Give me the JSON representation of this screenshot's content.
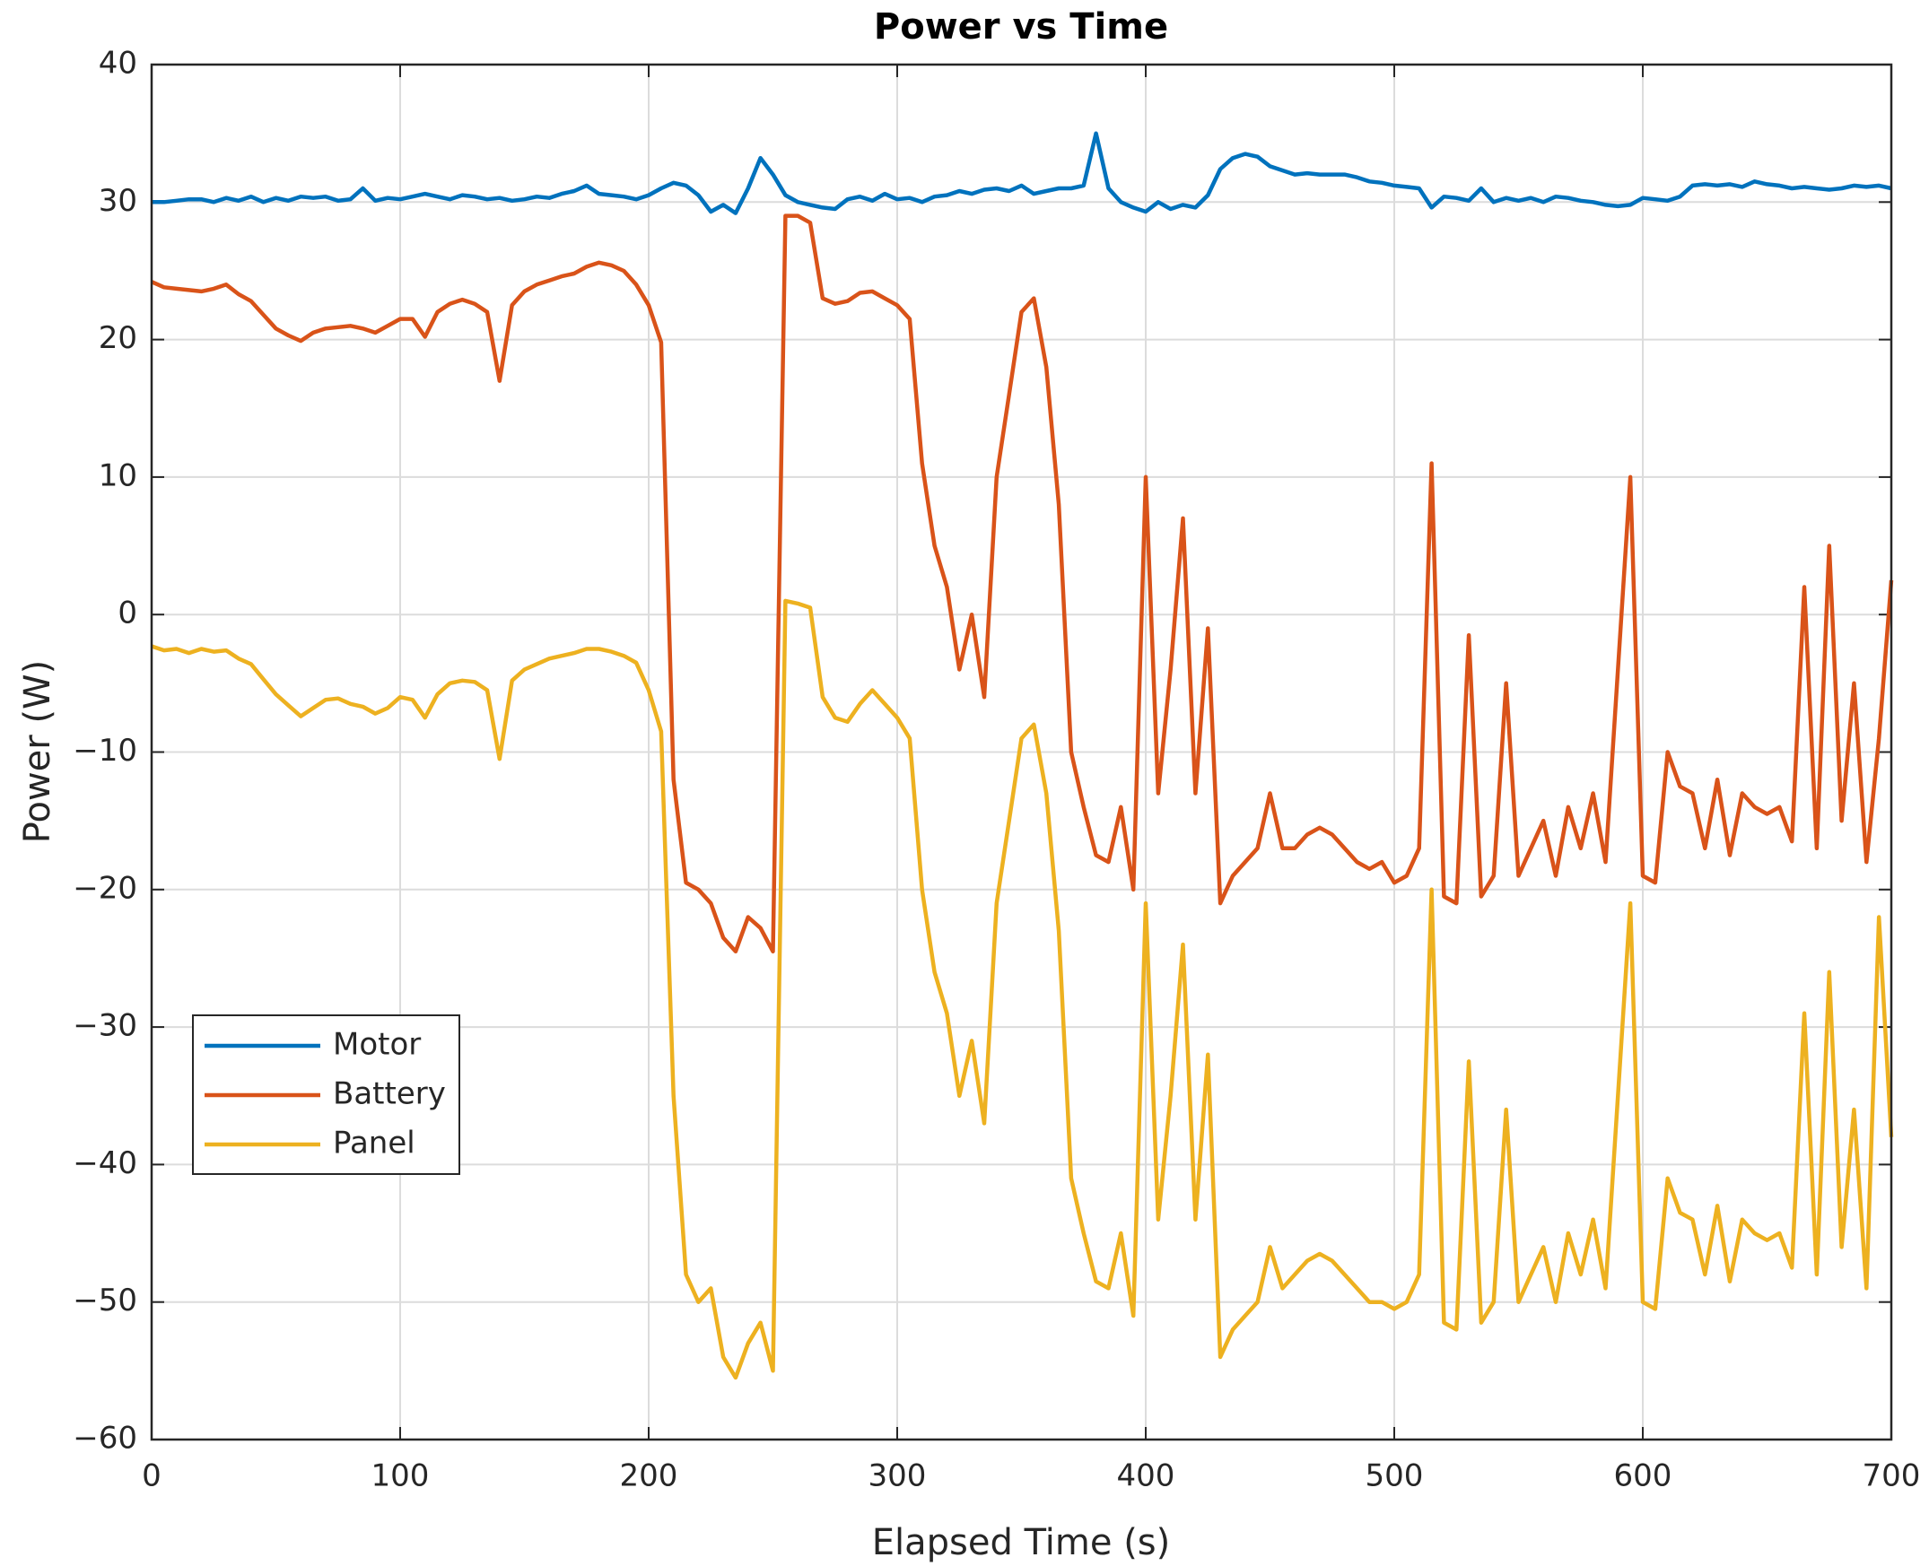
{
  "chart_data": {
    "type": "line",
    "title": "Power vs Time",
    "xlabel": "Elapsed Time (s)",
    "ylabel": "Power (W)",
    "x": [
      0,
      5,
      10,
      15,
      20,
      25,
      30,
      35,
      40,
      45,
      50,
      55,
      60,
      65,
      70,
      75,
      80,
      85,
      90,
      95,
      100,
      105,
      110,
      115,
      120,
      125,
      130,
      135,
      140,
      145,
      150,
      155,
      160,
      165,
      170,
      175,
      180,
      185,
      190,
      195,
      200,
      205,
      210,
      215,
      220,
      225,
      230,
      235,
      240,
      245,
      250,
      255,
      260,
      265,
      270,
      275,
      280,
      285,
      290,
      295,
      300,
      305,
      310,
      315,
      320,
      325,
      330,
      335,
      340,
      345,
      350,
      355,
      360,
      365,
      370,
      375,
      380,
      385,
      390,
      395,
      400,
      405,
      410,
      415,
      420,
      425,
      430,
      435,
      440,
      445,
      450,
      455,
      460,
      465,
      470,
      475,
      480,
      485,
      490,
      495,
      500,
      505,
      510,
      515,
      520,
      525,
      530,
      535,
      540,
      545,
      550,
      555,
      560,
      565,
      570,
      575,
      580,
      585,
      590,
      595,
      600,
      605,
      610,
      615,
      620,
      625,
      630,
      635,
      640,
      645,
      650,
      655,
      660,
      665,
      670,
      675,
      680,
      685,
      690,
      695,
      700
    ],
    "series": [
      {
        "name": "Motor",
        "color": "#0072bd",
        "values": [
          30,
          30,
          30.1,
          30.2,
          30.2,
          30,
          30.3,
          30.1,
          30.4,
          30,
          30.3,
          30.1,
          30.4,
          30.3,
          30.4,
          30.1,
          30.2,
          31,
          30.1,
          30.3,
          30.2,
          30.4,
          30.6,
          30.4,
          30.2,
          30.5,
          30.4,
          30.2,
          30.3,
          30.1,
          30.2,
          30.4,
          30.3,
          30.6,
          30.8,
          31.2,
          30.6,
          30.5,
          30.4,
          30.2,
          30.5,
          31,
          31.4,
          31.2,
          30.5,
          29.3,
          29.8,
          29.2,
          31,
          33.2,
          32,
          30.5,
          30,
          29.8,
          29.6,
          29.5,
          30.2,
          30.4,
          30.1,
          30.6,
          30.2,
          30.3,
          30,
          30.4,
          30.5,
          30.8,
          30.6,
          30.9,
          31,
          30.8,
          31.2,
          30.6,
          30.8,
          31,
          31,
          31.2,
          35,
          31,
          30,
          29.6,
          29.3,
          30,
          29.5,
          29.8,
          29.6,
          30.5,
          32.4,
          33.2,
          33.5,
          33.3,
          32.6,
          32.3,
          32,
          32.1,
          32,
          32,
          32,
          31.8,
          31.5,
          31.4,
          31.2,
          31.1,
          31,
          29.6,
          30.4,
          30.3,
          30.1,
          31,
          30,
          30.3,
          30.1,
          30.3,
          30,
          30.4,
          30.3,
          30.1,
          30,
          29.8,
          29.7,
          29.8,
          30.3,
          30.2,
          30.1,
          30.4,
          31.2,
          31.3,
          31.2,
          31.3,
          31.1,
          31.5,
          31.3,
          31.2,
          31,
          31.1,
          31,
          30.9,
          31,
          31.2,
          31.1,
          31.2,
          31
        ]
      },
      {
        "name": "Battery",
        "color": "#d95319",
        "values": [
          24.2,
          23.8,
          23.7,
          23.6,
          23.5,
          23.7,
          24,
          23.3,
          22.8,
          21.8,
          20.8,
          20.3,
          19.9,
          20.5,
          20.8,
          20.9,
          21,
          20.8,
          20.5,
          21,
          21.5,
          21.5,
          20.2,
          22,
          22.6,
          22.9,
          22.6,
          22,
          17,
          22.5,
          23.5,
          24,
          24.3,
          24.6,
          24.8,
          25.3,
          25.6,
          25.4,
          25,
          24,
          22.5,
          19.8,
          -12,
          -19.5,
          -20,
          -21,
          -23.5,
          -24.5,
          -22,
          -22.8,
          -24.5,
          29,
          29,
          28.5,
          23,
          22.6,
          22.8,
          23.4,
          23.5,
          23,
          22.5,
          21.5,
          11,
          5,
          2,
          -4,
          0,
          -6,
          10,
          16,
          22,
          23,
          18,
          8,
          -10,
          -14,
          -17.5,
          -18,
          -14,
          -20,
          10,
          -13,
          -4,
          7,
          -13,
          -1,
          -21,
          -19,
          -18,
          -17,
          -13,
          -17,
          -17,
          -16,
          -15.5,
          -16,
          -17,
          -18,
          -18.5,
          -18,
          -19.5,
          -19,
          -17,
          11,
          -20.5,
          -21,
          -1.5,
          -20.5,
          -19,
          -5,
          -19,
          -17,
          -15,
          -19,
          -14,
          -17,
          -13,
          -18,
          -4,
          10,
          -19,
          -19.5,
          -10,
          -12.5,
          -13,
          -17,
          -12,
          -17.5,
          -13,
          -14,
          -14.5,
          -14,
          -16.5,
          2,
          -17,
          5,
          -15,
          -5,
          -18,
          -9,
          2.5
        ]
      },
      {
        "name": "Panel",
        "color": "#edb120",
        "values": [
          -2.3,
          -2.6,
          -2.5,
          -2.8,
          -2.5,
          -2.7,
          -2.6,
          -3.2,
          -3.6,
          -4.7,
          -5.8,
          -6.6,
          -7.4,
          -6.8,
          -6.2,
          -6.1,
          -6.5,
          -6.7,
          -7.2,
          -6.8,
          -6,
          -6.2,
          -7.5,
          -5.8,
          -5,
          -4.8,
          -4.9,
          -5.5,
          -10.5,
          -4.8,
          -4,
          -3.6,
          -3.2,
          -3,
          -2.8,
          -2.5,
          -2.5,
          -2.7,
          -3,
          -3.5,
          -5.5,
          -8.5,
          -35,
          -48,
          -50,
          -49,
          -54,
          -55.5,
          -53,
          -51.5,
          -55,
          1,
          0.8,
          0.5,
          -6,
          -7.5,
          -7.8,
          -6.5,
          -5.5,
          -6.5,
          -7.5,
          -9,
          -20,
          -26,
          -29,
          -35,
          -31,
          -37,
          -21,
          -15,
          -9,
          -8,
          -13,
          -23,
          -41,
          -45,
          -48.5,
          -49,
          -45,
          -51,
          -21,
          -44,
          -35,
          -24,
          -44,
          -32,
          -54,
          -52,
          -51,
          -50,
          -46,
          -49,
          -48,
          -47,
          -46.5,
          -47,
          -48,
          -49,
          -50,
          -50,
          -50.5,
          -50,
          -48,
          -20,
          -51.5,
          -52,
          -32.5,
          -51.5,
          -50,
          -36,
          -50,
          -48,
          -46,
          -50,
          -45,
          -48,
          -44,
          -49,
          -35,
          -21,
          -50,
          -50.5,
          -41,
          -43.5,
          -44,
          -48,
          -43,
          -48.5,
          -44,
          -45,
          -45.5,
          -45,
          -47.5,
          -29,
          -48,
          -26,
          -46,
          -36,
          -49,
          -22,
          -38
        ]
      }
    ],
    "xlim": [
      0,
      700
    ],
    "xticks": [
      0,
      100,
      200,
      300,
      400,
      500,
      600,
      700
    ],
    "ylim": [
      -60,
      40
    ],
    "yticks": [
      {
        "value": -60,
        "label": "−60"
      },
      {
        "value": -50,
        "label": "−50"
      },
      {
        "value": -40,
        "label": "−40"
      },
      {
        "value": -30,
        "label": "−30"
      },
      {
        "value": -20,
        "label": "−20"
      },
      {
        "value": -10,
        "label": "−10"
      },
      0,
      10,
      20,
      30,
      40
    ],
    "grid": true,
    "legend": "lower left"
  }
}
